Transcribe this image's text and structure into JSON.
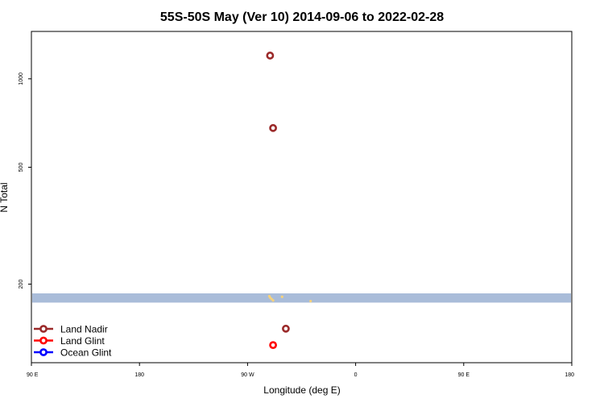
{
  "chart_data": {
    "type": "scatter",
    "title": "55S-50S May (Ver 10)   2014-09-06 to 2022-02-28",
    "xlabel": "Longitude (deg E)",
    "ylabel": "N Total",
    "y_scale": "log",
    "ylim": [
      108,
      1450
    ],
    "xlim": [
      0,
      360
    ],
    "x_ticks": [
      {
        "value": 0,
        "label": "90 E"
      },
      {
        "value": 72,
        "label": "180"
      },
      {
        "value": 144,
        "label": "90 W"
      },
      {
        "value": 216,
        "label": "0"
      },
      {
        "value": 288,
        "label": "90 E"
      },
      {
        "value": 360,
        "label": "180"
      }
    ],
    "y_ticks": [
      {
        "value": 200,
        "label": "200"
      },
      {
        "value": 500,
        "label": "500"
      },
      {
        "value": 1000,
        "label": "1000"
      }
    ],
    "band": {
      "y_low": 173,
      "y_high": 186,
      "color": "#a9bcd9"
    },
    "band_dots": [
      {
        "x": 158.5,
        "y": 182
      },
      {
        "x": 159,
        "y": 180
      },
      {
        "x": 160,
        "y": 178
      },
      {
        "x": 161,
        "y": 176
      },
      {
        "x": 167,
        "y": 181
      },
      {
        "x": 186,
        "y": 175
      }
    ],
    "band_dot_color": "#f7d27a",
    "series": [
      {
        "name": "Land Nadir",
        "color": "#9b2a2a",
        "points": [
          {
            "x": 159,
            "y": 1200
          },
          {
            "x": 161,
            "y": 680
          },
          {
            "x": 169.5,
            "y": 141
          }
        ]
      },
      {
        "name": "Land Glint",
        "color": "#ff0000",
        "points": [
          {
            "x": 161,
            "y": 124
          }
        ]
      },
      {
        "name": "Ocean Glint",
        "color": "#0000ff",
        "points": []
      }
    ],
    "legend_position": "bottom-left",
    "grid": false
  }
}
